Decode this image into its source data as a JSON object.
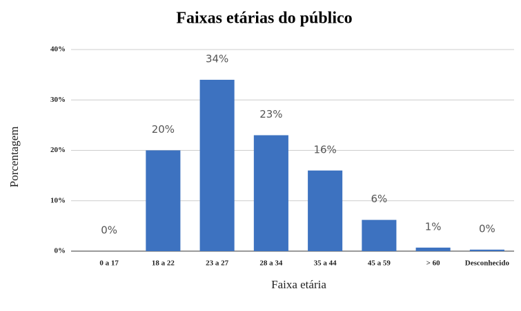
{
  "chart_data": {
    "type": "bar",
    "title": "Faixas etárias do público",
    "x_label": "Faixa etária",
    "y_label": "Porcentagem",
    "categories": [
      "0 a 17",
      "18 a 22",
      "23 a 27",
      "28 a 34",
      "35 a 44",
      "45 a 59",
      "> 60",
      "Desconhecido"
    ],
    "values": [
      0,
      20,
      34,
      23,
      16,
      6.2,
      0.7,
      0.3
    ],
    "value_labels": [
      "0%",
      "20%",
      "34%",
      "23%",
      "16%",
      "6%",
      "1%",
      "0%"
    ],
    "color": "#3d72c0",
    "ylim": [
      0,
      40
    ],
    "yticks": [
      {
        "value": 0,
        "label": "0%"
      },
      {
        "value": 10,
        "label": "10%"
      },
      {
        "value": 20,
        "label": "20%"
      },
      {
        "value": 30,
        "label": "30%"
      },
      {
        "value": 40,
        "label": "40%"
      }
    ],
    "grid": true
  }
}
